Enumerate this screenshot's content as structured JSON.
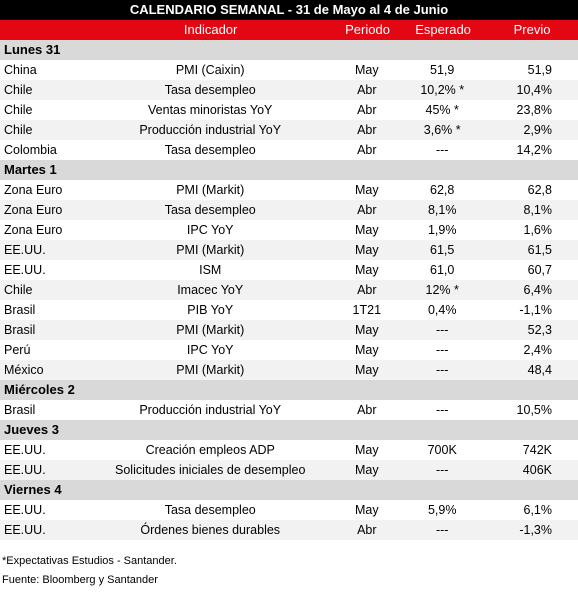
{
  "title": "CALENDARIO SEMANAL - 31 de Mayo al 4 de Junio",
  "headers": {
    "indicador": "Indicador",
    "periodo": "Periodo",
    "esperado": "Esperado",
    "previo": "Previo"
  },
  "sections": [
    {
      "day": "Lunes 31",
      "rows": [
        {
          "country": "China",
          "indicator": "PMI (Caixin)",
          "period": "May",
          "expected": "51,9",
          "previous": "51,9"
        },
        {
          "country": "Chile",
          "indicator": "Tasa desempleo",
          "period": "Abr",
          "expected": "10,2% *",
          "previous": "10,4%"
        },
        {
          "country": "Chile",
          "indicator": "Ventas minoristas YoY",
          "period": "Abr",
          "expected": "45% *",
          "previous": "23,8%"
        },
        {
          "country": "Chile",
          "indicator": "Producción industrial YoY",
          "period": "Abr",
          "expected": "3,6% *",
          "previous": "2,9%"
        },
        {
          "country": "Colombia",
          "indicator": "Tasa desempleo",
          "period": "Abr",
          "expected": "---",
          "previous": "14,2%"
        }
      ]
    },
    {
      "day": "Martes 1",
      "rows": [
        {
          "country": "Zona Euro",
          "indicator": "PMI (Markit)",
          "period": "May",
          "expected": "62,8",
          "previous": "62,8"
        },
        {
          "country": "Zona Euro",
          "indicator": "Tasa desempleo",
          "period": "Abr",
          "expected": "8,1%",
          "previous": "8,1%"
        },
        {
          "country": "Zona Euro",
          "indicator": "IPC YoY",
          "period": "May",
          "expected": "1,9%",
          "previous": "1,6%"
        },
        {
          "country": "EE.UU.",
          "indicator": "PMI (Markit)",
          "period": "May",
          "expected": "61,5",
          "previous": "61,5"
        },
        {
          "country": "EE.UU.",
          "indicator": "ISM",
          "period": "May",
          "expected": "61,0",
          "previous": "60,7"
        },
        {
          "country": "Chile",
          "indicator": "Imacec YoY",
          "period": "Abr",
          "expected": "12% *",
          "previous": "6,4%"
        },
        {
          "country": "Brasil",
          "indicator": "PIB YoY",
          "period": "1T21",
          "expected": "0,4%",
          "previous": "-1,1%"
        },
        {
          "country": "Brasil",
          "indicator": "PMI (Markit)",
          "period": "May",
          "expected": "---",
          "previous": "52,3"
        },
        {
          "country": "Perú",
          "indicator": "IPC YoY",
          "period": "May",
          "expected": "---",
          "previous": "2,4%"
        },
        {
          "country": "México",
          "indicator": "PMI (Markit)",
          "period": "May",
          "expected": "---",
          "previous": "48,4"
        }
      ]
    },
    {
      "day": "Miércoles 2",
      "rows": [
        {
          "country": "Brasil",
          "indicator": "Producción industrial YoY",
          "period": "Abr",
          "expected": "---",
          "previous": "10,5%"
        }
      ]
    },
    {
      "day": "Jueves 3",
      "rows": [
        {
          "country": "EE.UU.",
          "indicator": "Creación empleos ADP",
          "period": "May",
          "expected": "700K",
          "previous": "742K"
        },
        {
          "country": "EE.UU.",
          "indicator": "Solicitudes iniciales de desempleo",
          "period": "May",
          "expected": "---",
          "previous": "406K"
        }
      ]
    },
    {
      "day": "Viernes 4",
      "rows": [
        {
          "country": "EE.UU.",
          "indicator": "Tasa desempleo",
          "period": "May",
          "expected": "5,9%",
          "previous": "6,1%"
        },
        {
          "country": "EE.UU.",
          "indicator": "Órdenes bienes durables",
          "period": "Abr",
          "expected": "---",
          "previous": "-1,3%"
        }
      ]
    }
  ],
  "notes": {
    "expectativas": "*Expectativas Estudios - Santander.",
    "fuente": "Fuente: Bloomberg y Santander"
  },
  "colors": {
    "title_bg": "#000000",
    "header_bg": "#e30613",
    "day_bg": "#d9d9d9",
    "row_shade": "#f2f2f2"
  }
}
